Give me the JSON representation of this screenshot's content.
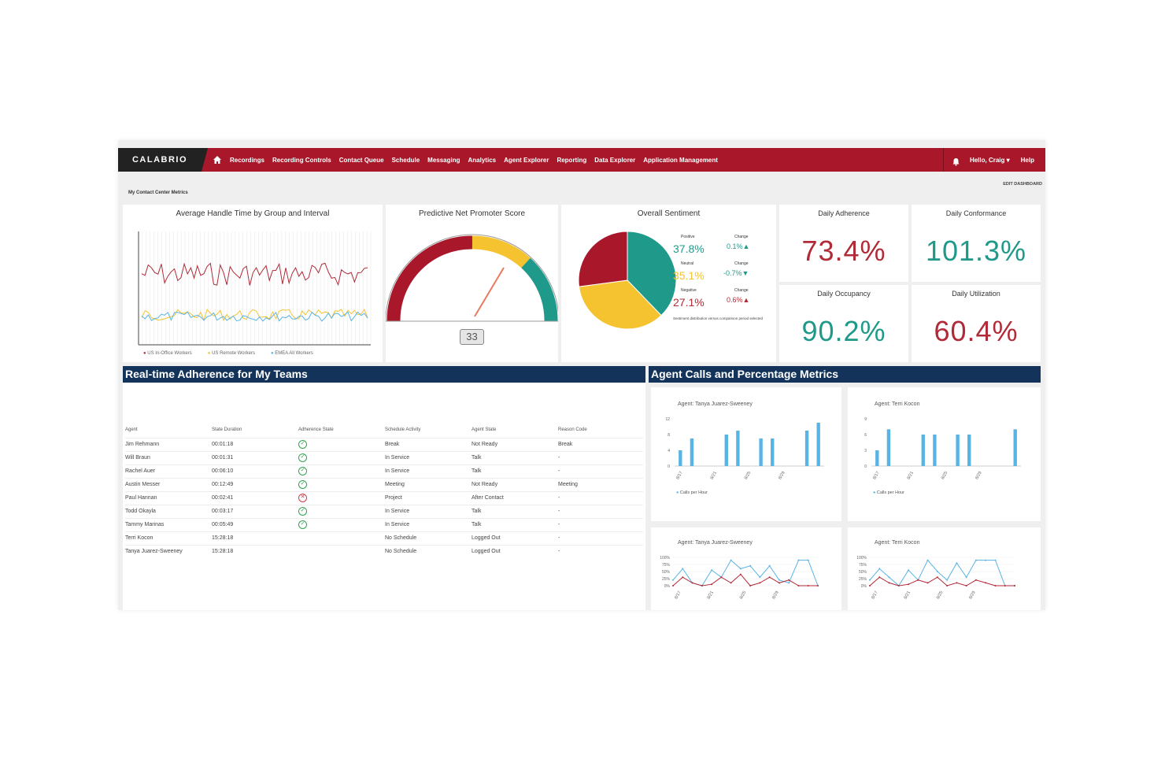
{
  "nav": {
    "brand": "CALABRIO",
    "items": [
      "Recordings",
      "Recording Controls",
      "Contact Queue",
      "Schedule",
      "Messaging",
      "Analytics",
      "Agent Explorer",
      "Reporting",
      "Data Explorer",
      "Application Management"
    ],
    "user": "Hello, Craig",
    "help": "Help"
  },
  "page": {
    "title": "My Contact Center Metrics",
    "edit": "EDIT DASHBOARD"
  },
  "aht": {
    "title": "Average Handle Time by Group and Interval",
    "legend": [
      "US In-Office Workers",
      "US Remote Workers",
      "EMEA All Workers"
    ],
    "colors": [
      "#b02a37",
      "#f5c330",
      "#58b4e4"
    ]
  },
  "nps": {
    "title": "Predictive Net Promoter Score",
    "value": "33"
  },
  "sentiment": {
    "title": "Overall Sentiment",
    "slices": [
      {
        "name": "Positive",
        "pct": 37.8,
        "pct_text": "37.8%",
        "change": "0.1%",
        "dir": "up",
        "color": "#1f9a8a"
      },
      {
        "name": "Neutral",
        "pct": 35.1,
        "pct_text": "35.1%",
        "change": "-0.7%",
        "dir": "down",
        "color": "#f5c330"
      },
      {
        "name": "Negative",
        "pct": 27.1,
        "pct_text": "27.1%",
        "change": "0.6%",
        "dir": "up",
        "color": "#a8182a"
      }
    ],
    "change_label": "Change",
    "footnote": "Sentiment distribution versus comparison period selected"
  },
  "kpis": [
    {
      "title": "Daily Adherence",
      "value": "73.4%",
      "color": "#b02a37"
    },
    {
      "title": "Daily Conformance",
      "value": "101.3%",
      "color": "#1f9a8a"
    },
    {
      "title": "Daily Occupancy",
      "value": "90.2%",
      "color": "#1f9a8a"
    },
    {
      "title": "Daily Utilization",
      "value": "60.4%",
      "color": "#b02a37"
    }
  ],
  "adherence": {
    "title": "Real-time Adherence for My Teams",
    "columns": [
      "Agent",
      "State Duration",
      "Adherence State",
      "Schedule Activity",
      "Agent State",
      "Reason Code"
    ],
    "rows": [
      {
        "agent": "Jim Rehmann",
        "duration": "00:01:18",
        "state": "ok",
        "activity": "Break",
        "agent_state": "Not Ready",
        "reason": "Break"
      },
      {
        "agent": "Will Braun",
        "duration": "00:01:31",
        "state": "ok",
        "activity": "In Service",
        "agent_state": "Talk",
        "reason": "-"
      },
      {
        "agent": "Rachel Auer",
        "duration": "00:06:10",
        "state": "ok",
        "activity": "In Service",
        "agent_state": "Talk",
        "reason": "-"
      },
      {
        "agent": "Austin Messer",
        "duration": "00:12:49",
        "state": "ok",
        "activity": "Meeting",
        "agent_state": "Not Ready",
        "reason": "Meeting"
      },
      {
        "agent": "Paul Hannan",
        "duration": "00:02:41",
        "state": "bad",
        "activity": "Project",
        "agent_state": "After Contact",
        "reason": "-"
      },
      {
        "agent": "Todd Okayla",
        "duration": "00:03:17",
        "state": "ok",
        "activity": "In Service",
        "agent_state": "Talk",
        "reason": "-"
      },
      {
        "agent": "Tammy Marinas",
        "duration": "00:05:49",
        "state": "ok",
        "activity": "In Service",
        "agent_state": "Talk",
        "reason": "-"
      },
      {
        "agent": "Terri Kocon",
        "duration": "15:28:18",
        "state": "",
        "activity": "No Schedule",
        "agent_state": "Logged Out",
        "reason": "-"
      },
      {
        "agent": "Tanya Juarez-Sweeney",
        "duration": "15:28:18",
        "state": "",
        "activity": "No Schedule",
        "agent_state": "Logged Out",
        "reason": "-"
      }
    ]
  },
  "agent_metrics": {
    "title": "Agent Calls and Percentage Metrics",
    "bar_legend": "Calls per Hour",
    "bar_charts": [
      {
        "agent": "Agent: Tanya Juarez-Sweeney",
        "ylim": [
          0,
          12
        ],
        "yticks": [
          "0",
          "4",
          "8",
          "12"
        ],
        "xticks": [
          "8/17",
          "8/21",
          "8/25",
          "8/29"
        ],
        "values": [
          4,
          7,
          0,
          0,
          8,
          9,
          0,
          7,
          7,
          0,
          0,
          9,
          11
        ]
      },
      {
        "agent": "Agent: Terri Kocon",
        "ylim": [
          0,
          9
        ],
        "yticks": [
          "0",
          "3",
          "6",
          "9"
        ],
        "xticks": [
          "8/17",
          "8/21",
          "8/25",
          "8/29"
        ],
        "values": [
          3,
          7,
          0,
          0,
          6,
          6,
          0,
          6,
          6,
          0,
          0,
          0,
          7
        ]
      }
    ],
    "pct_charts": [
      {
        "agent": "Agent: Tanya Juarez-Sweeney",
        "yticks": [
          "0%",
          "25%",
          "50%",
          "75%",
          "100%"
        ],
        "xticks": [
          "8/17",
          "8/21",
          "8/25",
          "8/29"
        ],
        "blue": [
          20,
          60,
          10,
          0,
          55,
          30,
          90,
          60,
          70,
          30,
          70,
          20,
          10,
          90,
          90,
          0
        ],
        "red": [
          0,
          30,
          10,
          0,
          5,
          30,
          10,
          40,
          0,
          10,
          30,
          10,
          20,
          0,
          0,
          0
        ]
      },
      {
        "agent": "Agent: Terri Kocon",
        "yticks": [
          "0%",
          "25%",
          "50%",
          "75%",
          "100%"
        ],
        "xticks": [
          "8/17",
          "8/21",
          "8/25",
          "8/29"
        ],
        "blue": [
          20,
          60,
          30,
          0,
          55,
          20,
          90,
          50,
          20,
          80,
          30,
          90,
          90,
          90,
          0,
          0
        ],
        "red": [
          0,
          30,
          10,
          0,
          5,
          20,
          10,
          30,
          0,
          10,
          0,
          20,
          10,
          0,
          0,
          0
        ]
      }
    ]
  }
}
